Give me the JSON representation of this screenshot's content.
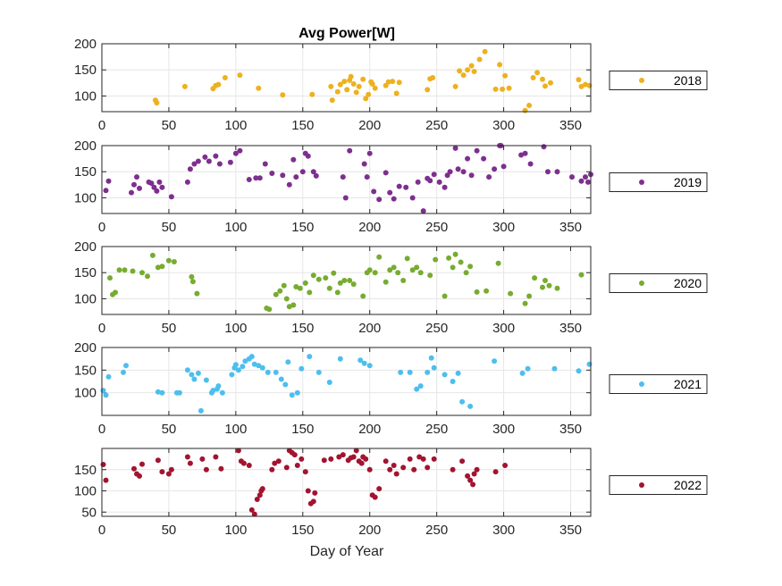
{
  "chart_data": {
    "type": "scatter",
    "title": "Avg Power[W]",
    "xlabel": "Day of Year",
    "xlim": [
      0,
      365
    ],
    "xticks": [
      0,
      50,
      100,
      150,
      200,
      250,
      300,
      350
    ],
    "grid": true,
    "legend_placement": "right",
    "panels": [
      {
        "series": {
          "name": "2018",
          "color": "#EDB120",
          "x": [
            40,
            41,
            62,
            83,
            85,
            87,
            92,
            103,
            117,
            135,
            157,
            171,
            172,
            176,
            178,
            181,
            183,
            185,
            186,
            188,
            190,
            192,
            195,
            197,
            199,
            201,
            202,
            204,
            212,
            214,
            217,
            220,
            222,
            243,
            245,
            247,
            264,
            267,
            270,
            273,
            276,
            278,
            282,
            286,
            294,
            297,
            299,
            301,
            304,
            316,
            319,
            322,
            325,
            329,
            331,
            335,
            356,
            358,
            361,
            364
          ],
          "y": [
            92,
            87,
            118,
            114,
            120,
            122,
            135,
            140,
            115,
            102,
            103,
            118,
            92,
            108,
            122,
            128,
            112,
            130,
            137,
            123,
            107,
            118,
            132,
            95,
            103,
            127,
            123,
            115,
            120,
            127,
            128,
            105,
            126,
            112,
            133,
            135,
            118,
            148,
            140,
            150,
            158,
            147,
            170,
            185,
            113,
            160,
            113,
            139,
            115,
            72,
            82,
            135,
            145,
            132,
            119,
            125,
            131,
            118,
            122,
            120
          ]
        },
        "ylim": [
          70,
          200
        ],
        "yticks": [
          100,
          150,
          200
        ]
      },
      {
        "series": {
          "name": "2019",
          "color": "#7E2F8E",
          "x": [
            3,
            5,
            22,
            24,
            26,
            28,
            35,
            37,
            39,
            41,
            43,
            45,
            52,
            64,
            66,
            69,
            72,
            77,
            80,
            85,
            88,
            96,
            100,
            103,
            110,
            115,
            118,
            122,
            127,
            135,
            140,
            143,
            145,
            150,
            152,
            154,
            158,
            160,
            180,
            182,
            185,
            196,
            198,
            200,
            203,
            207,
            212,
            215,
            218,
            222,
            227,
            232,
            236,
            240,
            243,
            245,
            248,
            252,
            256,
            258,
            260,
            264,
            266,
            270,
            273,
            276,
            280,
            285,
            289,
            293,
            297,
            298,
            300,
            313,
            316,
            320,
            330,
            333,
            340,
            351,
            358,
            361,
            363,
            365
          ],
          "y": [
            114,
            132,
            110,
            125,
            140,
            118,
            130,
            128,
            120,
            113,
            130,
            120,
            102,
            130,
            155,
            165,
            170,
            178,
            170,
            180,
            165,
            168,
            185,
            190,
            135,
            138,
            138,
            165,
            147,
            143,
            125,
            173,
            140,
            150,
            185,
            180,
            150,
            142,
            140,
            100,
            190,
            165,
            140,
            185,
            112,
            97,
            148,
            110,
            98,
            122,
            120,
            100,
            130,
            75,
            137,
            133,
            145,
            130,
            120,
            143,
            150,
            195,
            155,
            150,
            175,
            143,
            190,
            175,
            140,
            155,
            200,
            200,
            160,
            182,
            185,
            165,
            198,
            150,
            150,
            140,
            132,
            140,
            130,
            145
          ]
        },
        "ylim": [
          70,
          200
        ],
        "yticks": [
          100,
          150,
          200
        ]
      },
      {
        "series": {
          "name": "2020",
          "color": "#77AC30",
          "x": [
            6,
            8,
            10,
            13,
            17,
            23,
            30,
            34,
            38,
            42,
            45,
            50,
            54,
            67,
            68,
            71,
            123,
            125,
            130,
            133,
            136,
            138,
            140,
            143,
            145,
            148,
            152,
            155,
            158,
            162,
            167,
            170,
            173,
            176,
            178,
            181,
            185,
            188,
            195,
            198,
            200,
            204,
            207,
            212,
            215,
            218,
            221,
            225,
            228,
            232,
            235,
            238,
            245,
            249,
            256,
            259,
            262,
            264,
            268,
            272,
            275,
            280,
            287,
            296,
            305,
            316,
            319,
            323,
            329,
            331,
            334,
            340,
            358
          ],
          "y": [
            140,
            108,
            112,
            155,
            155,
            153,
            150,
            143,
            183,
            160,
            162,
            173,
            171,
            142,
            133,
            110,
            82,
            80,
            108,
            115,
            125,
            100,
            85,
            88,
            123,
            120,
            130,
            112,
            145,
            137,
            140,
            120,
            149,
            112,
            130,
            135,
            135,
            128,
            105,
            150,
            155,
            150,
            180,
            132,
            155,
            160,
            150,
            135,
            177,
            155,
            160,
            150,
            145,
            175,
            105,
            178,
            160,
            185,
            170,
            150,
            162,
            113,
            115,
            168,
            110,
            91,
            105,
            140,
            122,
            135,
            125,
            120,
            146
          ]
        },
        "ylim": [
          70,
          200
        ],
        "yticks": [
          100,
          150,
          200
        ]
      },
      {
        "series": {
          "name": "2021",
          "color": "#4DBEEE",
          "x": [
            1,
            3,
            5,
            16,
            18,
            42,
            45,
            56,
            58,
            64,
            67,
            69,
            72,
            74,
            78,
            82,
            83,
            86,
            87,
            90,
            97,
            99,
            100,
            102,
            105,
            107,
            110,
            112,
            114,
            117,
            120,
            124,
            130,
            134,
            137,
            139,
            142,
            146,
            149,
            155,
            162,
            170,
            178,
            193,
            196,
            200,
            223,
            230,
            235,
            238,
            243,
            246,
            248,
            256,
            262,
            266,
            269,
            275,
            293,
            314,
            318,
            338,
            356,
            364
          ],
          "y": [
            105,
            95,
            135,
            145,
            160,
            102,
            100,
            100,
            100,
            150,
            140,
            130,
            143,
            60,
            128,
            100,
            105,
            108,
            115,
            100,
            140,
            155,
            162,
            150,
            158,
            170,
            175,
            180,
            163,
            160,
            155,
            145,
            145,
            130,
            118,
            168,
            95,
            100,
            153,
            180,
            145,
            123,
            175,
            172,
            165,
            160,
            145,
            145,
            108,
            115,
            145,
            177,
            155,
            140,
            125,
            143,
            80,
            70,
            170,
            143,
            153,
            153,
            148,
            163
          ]
        },
        "ylim": [
          50,
          200
        ],
        "yticks": [
          100,
          150,
          200
        ]
      },
      {
        "series": {
          "name": "2022",
          "color": "#A2142F",
          "x": [
            1,
            3,
            24,
            26,
            28,
            30,
            42,
            45,
            50,
            52,
            64,
            66,
            75,
            78,
            85,
            89,
            102,
            104,
            106,
            110,
            112,
            114,
            116,
            118,
            119,
            120,
            127,
            129,
            132,
            138,
            140,
            142,
            144,
            146,
            149,
            152,
            154,
            156,
            158,
            159,
            166,
            171,
            177,
            180,
            184,
            186,
            188,
            190,
            192,
            194,
            195,
            197,
            200,
            202,
            204,
            207,
            212,
            215,
            218,
            220,
            225,
            230,
            233,
            237,
            240,
            243,
            248,
            262,
            269,
            273,
            275,
            277,
            278,
            280,
            294,
            301
          ],
          "y": [
            162,
            125,
            152,
            140,
            135,
            163,
            172,
            145,
            140,
            150,
            180,
            165,
            175,
            150,
            180,
            152,
            195,
            170,
            165,
            160,
            55,
            45,
            80,
            90,
            100,
            105,
            150,
            165,
            170,
            155,
            195,
            190,
            185,
            160,
            175,
            145,
            100,
            70,
            75,
            95,
            172,
            175,
            180,
            185,
            172,
            178,
            180,
            195,
            170,
            165,
            180,
            175,
            150,
            90,
            85,
            105,
            170,
            150,
            160,
            140,
            155,
            175,
            150,
            180,
            175,
            155,
            175,
            150,
            170,
            135,
            125,
            115,
            140,
            150,
            145,
            160
          ]
        },
        "ylim": [
          40,
          200
        ],
        "yticks": [
          50,
          100,
          150
        ]
      }
    ]
  }
}
